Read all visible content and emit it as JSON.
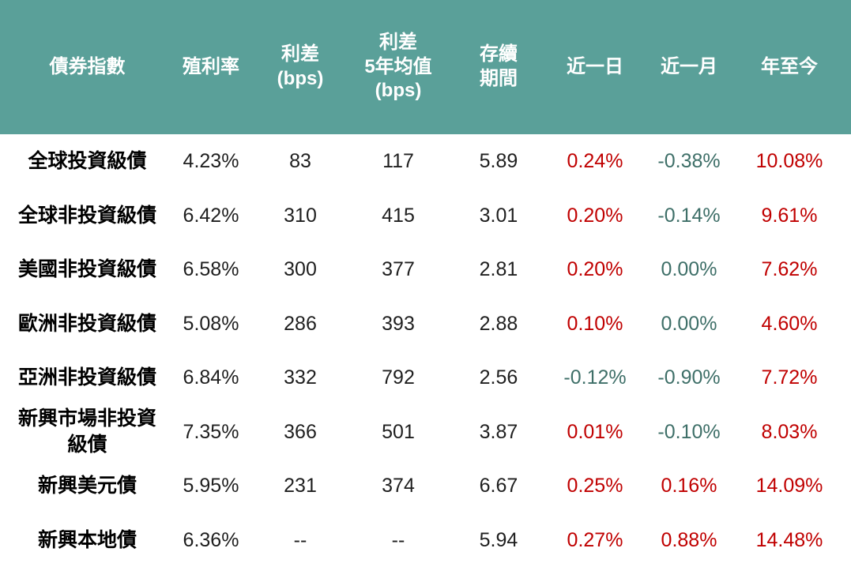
{
  "colors": {
    "header_bg": "#5AA099",
    "header_text": "#FFFFFF",
    "label_text": "#000000",
    "value_text": "#1F1F1F",
    "positive": "#C00000",
    "negative": "#3E6F68"
  },
  "chart_data": {
    "type": "table",
    "title": "",
    "columns": [
      "債券指數",
      "殖利率",
      "利差\n(bps)",
      "利差\n5年均值\n(bps)",
      "存續\n期間",
      "近一日",
      "近一月",
      "年至今"
    ],
    "rows": [
      {
        "name": "全球投資級債",
        "yield": "4.23%",
        "spread_bps": "83",
        "spread_5y_avg_bps": "117",
        "duration": "5.89",
        "change_1d": {
          "value": "0.24%",
          "tone": "positive"
        },
        "change_1m": {
          "value": "-0.38%",
          "tone": "negative"
        },
        "change_ytd": {
          "value": "10.08%",
          "tone": "positive"
        }
      },
      {
        "name": "全球非投資級債",
        "yield": "6.42%",
        "spread_bps": "310",
        "spread_5y_avg_bps": "415",
        "duration": "3.01",
        "change_1d": {
          "value": "0.20%",
          "tone": "positive"
        },
        "change_1m": {
          "value": "-0.14%",
          "tone": "negative"
        },
        "change_ytd": {
          "value": "9.61%",
          "tone": "positive"
        }
      },
      {
        "name": "美國非投資級債",
        "yield": "6.58%",
        "spread_bps": "300",
        "spread_5y_avg_bps": "377",
        "duration": "2.81",
        "change_1d": {
          "value": "0.20%",
          "tone": "positive"
        },
        "change_1m": {
          "value": "0.00%",
          "tone": "negative"
        },
        "change_ytd": {
          "value": "7.62%",
          "tone": "positive"
        }
      },
      {
        "name": "歐洲非投資級債",
        "yield": "5.08%",
        "spread_bps": "286",
        "spread_5y_avg_bps": "393",
        "duration": "2.88",
        "change_1d": {
          "value": "0.10%",
          "tone": "positive"
        },
        "change_1m": {
          "value": "0.00%",
          "tone": "negative"
        },
        "change_ytd": {
          "value": "4.60%",
          "tone": "positive"
        }
      },
      {
        "name": "亞洲非投資級債",
        "yield": "6.84%",
        "spread_bps": "332",
        "spread_5y_avg_bps": "792",
        "duration": "2.56",
        "change_1d": {
          "value": "-0.12%",
          "tone": "negative"
        },
        "change_1m": {
          "value": "-0.90%",
          "tone": "negative"
        },
        "change_ytd": {
          "value": "7.72%",
          "tone": "positive"
        }
      },
      {
        "name": "新興市場非投資\n級債",
        "yield": "7.35%",
        "spread_bps": "366",
        "spread_5y_avg_bps": "501",
        "duration": "3.87",
        "change_1d": {
          "value": "0.01%",
          "tone": "positive"
        },
        "change_1m": {
          "value": "-0.10%",
          "tone": "negative"
        },
        "change_ytd": {
          "value": "8.03%",
          "tone": "positive"
        }
      },
      {
        "name": "新興美元債",
        "yield": "5.95%",
        "spread_bps": "231",
        "spread_5y_avg_bps": "374",
        "duration": "6.67",
        "change_1d": {
          "value": "0.25%",
          "tone": "positive"
        },
        "change_1m": {
          "value": "0.16%",
          "tone": "positive"
        },
        "change_ytd": {
          "value": "14.09%",
          "tone": "positive"
        }
      },
      {
        "name": "新興本地債",
        "yield": "6.36%",
        "spread_bps": "--",
        "spread_5y_avg_bps": "--",
        "duration": "5.94",
        "change_1d": {
          "value": "0.27%",
          "tone": "positive"
        },
        "change_1m": {
          "value": "0.88%",
          "tone": "positive"
        },
        "change_ytd": {
          "value": "14.48%",
          "tone": "positive"
        }
      }
    ]
  }
}
